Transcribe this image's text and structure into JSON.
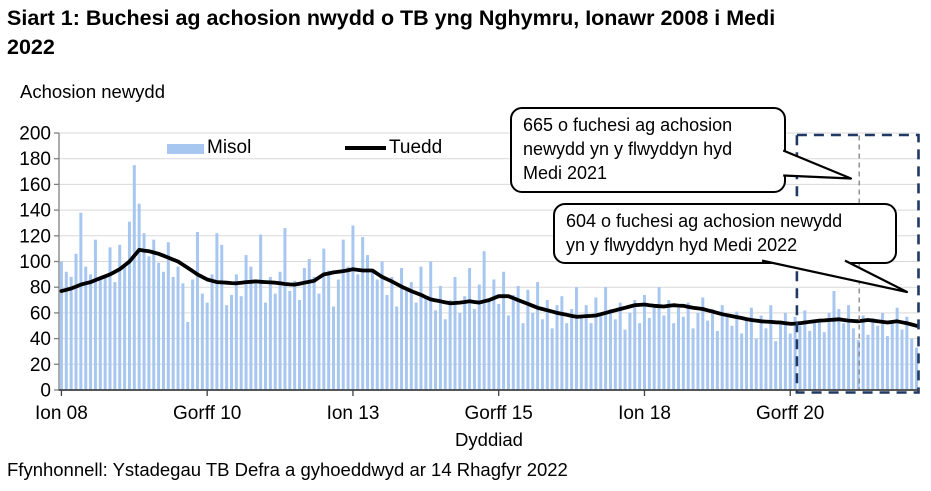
{
  "title_lines": [
    "Siart 1: Buchesi ag achosion nwydd o TB yng Nghymru, Ionawr 2008 i Medi",
    "2022"
  ],
  "y_axis_title": "Achosion newydd",
  "x_axis_title": "Dyddiad",
  "source": "Ffynhonnell: Ystadegau TB Defra a gyhoeddwyd ar 14 Rhagfyr 2022",
  "legend": {
    "monthly_label": "Misol",
    "trend_label": "Tuedd"
  },
  "annotations": {
    "callout_2021": {
      "text": "665 o fuchesi ag achosion newydd yn y flwyddyn hyd Medi 2021",
      "lines": [
        "665 o fuchesi ag achosion",
        "newydd yn y flwyddyn hyd",
        "Medi 2021"
      ]
    },
    "callout_2022": {
      "text": "604 o fuchesi ag achosion newydd yn y flwyddyn hyd Medi 2022",
      "lines": [
        "604 o fuchesi ag achosion newydd",
        "yn y flwyddyn hyd Medi 2022"
      ]
    }
  },
  "colors": {
    "bar": "#A8C7F0",
    "trend": "#000000",
    "grid": "#D9D9D9",
    "axis_y": "#808080",
    "axis_x": "#404040",
    "highlight_box": "#1F3864",
    "divider": "#7F7F7F"
  },
  "chart_data": {
    "type": "bar",
    "title": "Buchesi ag achosion nwydd o TB yng Nghymru, Ionawr 2008 i Medi 2022",
    "xlabel": "Dyddiad",
    "ylabel": "Achosion newydd",
    "ylim": [
      0,
      200
    ],
    "ytick_step": 20,
    "grid": true,
    "x_range": {
      "start": "Ionawr 2008",
      "end": "Medi 2022",
      "months": 177
    },
    "x_tick_labels": [
      "Ion 08",
      "Gorff 10",
      "Ion 13",
      "Gorff 15",
      "Ion 18",
      "Gorff 20"
    ],
    "x_tick_month_indices": [
      0,
      30,
      60,
      90,
      120,
      150
    ],
    "series": [
      {
        "name": "Misol",
        "type": "bar",
        "values": [
          100,
          92,
          88,
          106,
          138,
          96,
          90,
          117,
          86,
          89,
          111,
          84,
          113,
          97,
          131,
          175,
          145,
          122,
          104,
          117,
          99,
          92,
          115,
          88,
          96,
          83,
          53,
          86,
          123,
          75,
          68,
          90,
          122,
          113,
          66,
          74,
          90,
          73,
          105,
          96,
          84,
          121,
          68,
          88,
          75,
          92,
          126,
          77,
          85,
          70,
          95,
          102,
          88,
          75,
          110,
          93,
          65,
          86,
          117,
          96,
          128,
          90,
          119,
          105,
          92,
          86,
          100,
          74,
          88,
          65,
          95,
          77,
          84,
          68,
          96,
          73,
          100,
          62,
          81,
          55,
          70,
          88,
          60,
          73,
          95,
          63,
          82,
          108,
          70,
          86,
          67,
          92,
          58,
          74,
          81,
          52,
          78,
          60,
          84,
          55,
          70,
          48,
          66,
          73,
          52,
          63,
          80,
          57,
          66,
          52,
          72,
          58,
          80,
          63,
          55,
          68,
          47,
          60,
          70,
          52,
          74,
          56,
          66,
          80,
          58,
          70,
          52,
          64,
          57,
          68,
          48,
          60,
          72,
          54,
          63,
          46,
          66,
          58,
          50,
          61,
          44,
          56,
          64,
          40,
          58,
          48,
          66,
          38,
          54,
          60,
          44,
          57,
          50,
          62,
          46,
          52,
          55,
          45,
          60,
          77,
          63,
          52,
          66,
          48,
          39,
          58,
          43,
          56,
          50,
          60,
          42,
          54,
          64,
          47,
          57,
          40,
          33
        ]
      },
      {
        "name": "Tuedd",
        "type": "line",
        "values": [
          77,
          78,
          79,
          80.5,
          82,
          83,
          84,
          85.5,
          87,
          88.5,
          90,
          92,
          94,
          97,
          100,
          104.5,
          109,
          108.5,
          108,
          107,
          106,
          104.5,
          103,
          101.5,
          100,
          97.5,
          95,
          92.5,
          90,
          88,
          86,
          85,
          84,
          83.7,
          83.5,
          83.2,
          83,
          83.5,
          84,
          84.2,
          84.5,
          84.2,
          84,
          83.7,
          83.5,
          83,
          82.5,
          82.2,
          82,
          82.7,
          83.5,
          84.2,
          85,
          87.5,
          90,
          90.7,
          91.5,
          92,
          92.5,
          93.2,
          94,
          93.5,
          93,
          93,
          93,
          90.5,
          88,
          86.2,
          84.5,
          82.5,
          80.5,
          78.7,
          77,
          75.5,
          74,
          72.2,
          70.5,
          69.7,
          69,
          68.2,
          67.5,
          67.7,
          68,
          68.5,
          69,
          68.5,
          68,
          69,
          70,
          71.5,
          73,
          73,
          73,
          71.5,
          70,
          68.5,
          67,
          65.5,
          64,
          63,
          62,
          61,
          60,
          59.2,
          58.5,
          57.7,
          57,
          57.2,
          57.5,
          57.7,
          58,
          59,
          60,
          61,
          62,
          63,
          64,
          65,
          66,
          66.2,
          66.5,
          66,
          65.5,
          65.2,
          65,
          65.5,
          66,
          65.7,
          65.5,
          64.7,
          64,
          63.5,
          63,
          62,
          61,
          60,
          59,
          58.2,
          57.5,
          56.7,
          56,
          55.2,
          54.5,
          54,
          53.5,
          53.2,
          53,
          52.7,
          52.5,
          52,
          51.5,
          51.7,
          52,
          52.5,
          53,
          53.5,
          54,
          54.2,
          54.5,
          54.7,
          55,
          54.5,
          54,
          53.7,
          53.5,
          54,
          54.5,
          54,
          53.5,
          53,
          52.5,
          53,
          53.5,
          52.7,
          52,
          51,
          50
        ]
      }
    ],
    "highlight_window": {
      "from_month_index": 153,
      "to_month_index": 177,
      "divider_month_index": 165,
      "totals": {
        "year_to_Medi_2021": 665,
        "year_to_Medi_2022": 604
      }
    },
    "legend_position": "top-inside"
  }
}
